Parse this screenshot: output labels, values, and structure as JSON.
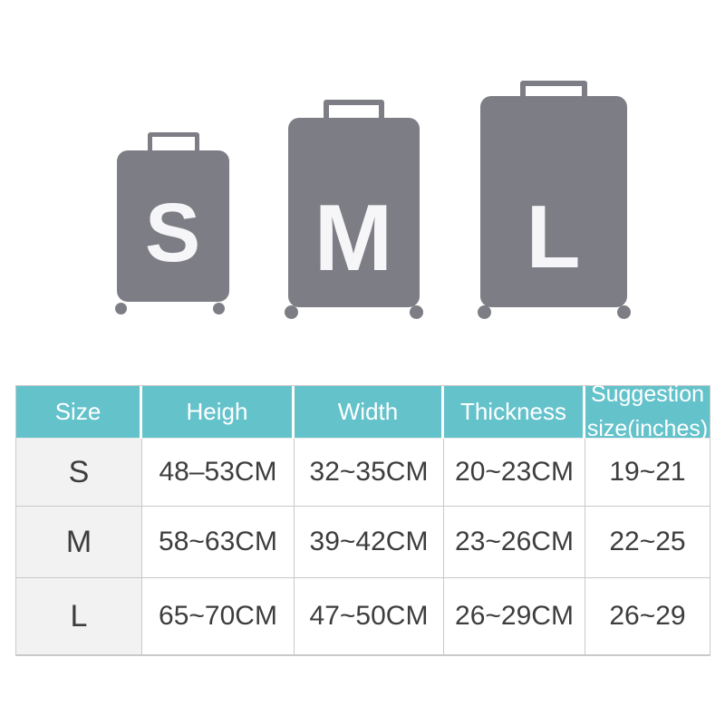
{
  "luggage": {
    "body_color": "#7d7d85",
    "label_color": "#f6f6f8",
    "sizes": [
      {
        "label": "S"
      },
      {
        "label": "M"
      },
      {
        "label": "L"
      }
    ]
  },
  "size_table": {
    "accent_color": "#64c2cb",
    "header_text_color": "#ffffff",
    "size_column_bg": "#f2f2f2",
    "columns": [
      {
        "label": "Size"
      },
      {
        "label": "Heigh"
      },
      {
        "label": "Width"
      },
      {
        "label": "Thickness"
      },
      {
        "label": "Suggestion",
        "label2": "size(inches)"
      }
    ],
    "rows": [
      {
        "cells": [
          "S",
          "48–53CM",
          "32~35CM",
          "20~23CM",
          "19~21"
        ]
      },
      {
        "cells": [
          "M",
          "58~63CM",
          "39~42CM",
          "23~26CM",
          "22~25"
        ]
      },
      {
        "cells": [
          "L",
          "65~70CM",
          "47~50CM",
          "26~29CM",
          "26~29"
        ]
      }
    ]
  }
}
